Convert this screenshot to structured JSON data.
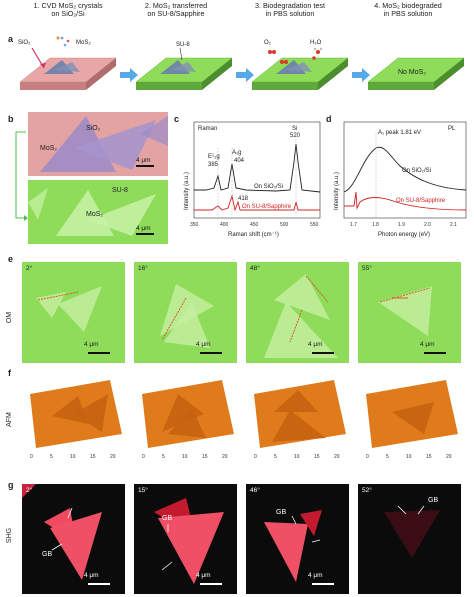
{
  "panel_a": {
    "letter": "a",
    "steps": [
      {
        "line1": "1. CVD MoS₂ crystals",
        "line2": "on SiO₂/Si"
      },
      {
        "line1": "2. MoS₂ transferred",
        "line2": "on SU-8/Sapphire"
      },
      {
        "line1": "3. Biodegradation test",
        "line2": "in PBS solution"
      },
      {
        "line1": "4. MoS₂ biodegraded",
        "line2": "in PBS solution"
      }
    ],
    "labels": {
      "sio2": "SiO₂",
      "mos2": "MoS₂",
      "su8": "SU-8",
      "o2": "O₂",
      "h2o": "H₂O",
      "no_mos2": "No MoS₂"
    },
    "colors": {
      "pink": "#e8a6a6",
      "green": "#8fdc5a",
      "arrow": "#55a9e8"
    }
  },
  "panel_b": {
    "letter": "b",
    "top": {
      "sio2": "SiO₂",
      "mos2": "MoS₂",
      "scale": "4 μm"
    },
    "bottom": {
      "su8": "SU-8",
      "mos2": "MoS₂",
      "scale": "4 μm"
    }
  },
  "panel_c": {
    "letter": "c",
    "title": "Raman",
    "peak_e": "E¹₂g",
    "peak_e_val": "385",
    "peak_a": "A₁g",
    "peak_a_val": "404",
    "peak_si": "Si",
    "peak_si_val": "520",
    "peak_418": "418",
    "series1": "On SiO₂/Si",
    "series2": "On SU-8/Sapphire",
    "ylabel": "Intensity (a.u.)",
    "xlabel": "Raman shift (cm⁻¹)",
    "xticks": [
      "350",
      "400",
      "450",
      "500",
      "550"
    ]
  },
  "panel_d": {
    "letter": "d",
    "title": "PL",
    "peak": "A₁ peak 1.81 eV",
    "series1": "On SiO₂/Si",
    "series2": "On SU-8/Sapphire",
    "ylabel": "Intensity (a.u.)",
    "xlabel": "Photon energy (eV)",
    "xticks": [
      "1.7",
      "1.8",
      "1.9",
      "2.0",
      "2.1"
    ]
  },
  "panel_e": {
    "letter": "e",
    "row_label": "OM",
    "tiles": [
      {
        "angle": "2°",
        "scale": "4 μm"
      },
      {
        "angle": "16°",
        "scale": "4 μm"
      },
      {
        "angle": "48°",
        "scale": "4 μm"
      },
      {
        "angle": "55°",
        "scale": "4 μm"
      }
    ]
  },
  "panel_f": {
    "letter": "f",
    "row_label": "AFM",
    "axis_ticks": [
      "0",
      "5",
      "10",
      "15",
      "20"
    ]
  },
  "panel_g": {
    "letter": "g",
    "row_label": "SHG",
    "tiles": [
      {
        "angle": "2°",
        "gb": "GB",
        "scale": "4 μm"
      },
      {
        "angle": "15°",
        "gb": "GB",
        "scale": "4 μm"
      },
      {
        "angle": "46°",
        "gb": "GB",
        "scale": "4 μm"
      },
      {
        "angle": "52°",
        "gb": "GB",
        "scale": ""
      }
    ]
  }
}
